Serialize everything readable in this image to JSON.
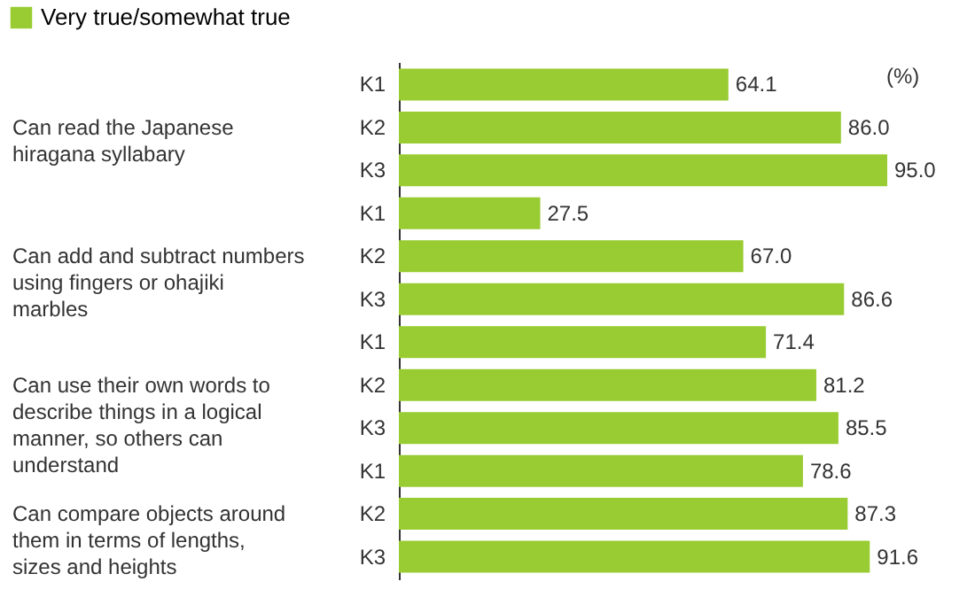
{
  "chart_data": {
    "type": "bar",
    "orientation": "horizontal",
    "categories": [
      "K1",
      "K2",
      "K3",
      "K1",
      "K2",
      "K3",
      "K1",
      "K2",
      "K3",
      "K1",
      "K2",
      "K3"
    ],
    "series": [
      {
        "name": "Very true/somewhat true",
        "color": "#99cc33",
        "values": [
          64.1,
          86.0,
          95.0,
          27.5,
          67.0,
          86.6,
          71.4,
          81.2,
          85.5,
          78.6,
          87.3,
          91.6
        ],
        "value_labels": [
          "64.1",
          "86.0",
          "95.0",
          "27.5",
          "67.0",
          "86.6",
          "71.4",
          "81.2",
          "85.5",
          "78.6",
          "87.3",
          "91.6"
        ]
      }
    ],
    "annotations": [
      "Can read the Japanese hiragana syllabary",
      "Can add and subtract numbers using fingers or ohajiki marbles",
      "Can use their own words to describe things in a logical manner, so others can understand",
      "Can compare objects around them in terms of lengths, sizes and heights",
      "(%)"
    ],
    "legend": "top left",
    "grid": false
  }
}
